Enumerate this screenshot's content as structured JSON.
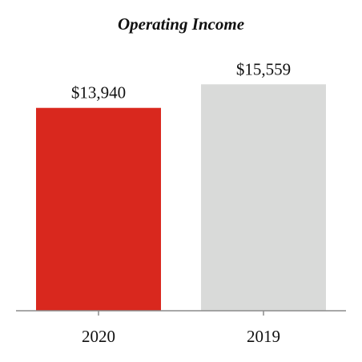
{
  "chart_data": {
    "type": "bar",
    "title": "Operating Income",
    "xlabel": "",
    "ylabel": "",
    "categories": [
      "2020",
      "2019"
    ],
    "values": [
      13940,
      15559
    ],
    "value_labels": [
      "$13,940",
      "$15,559"
    ],
    "bar_colors": [
      "#d9281e",
      "#d9dad9"
    ],
    "axis_color": "#8c8c8c",
    "ylim": [
      0,
      20000
    ],
    "grid": false,
    "legend": "none"
  }
}
